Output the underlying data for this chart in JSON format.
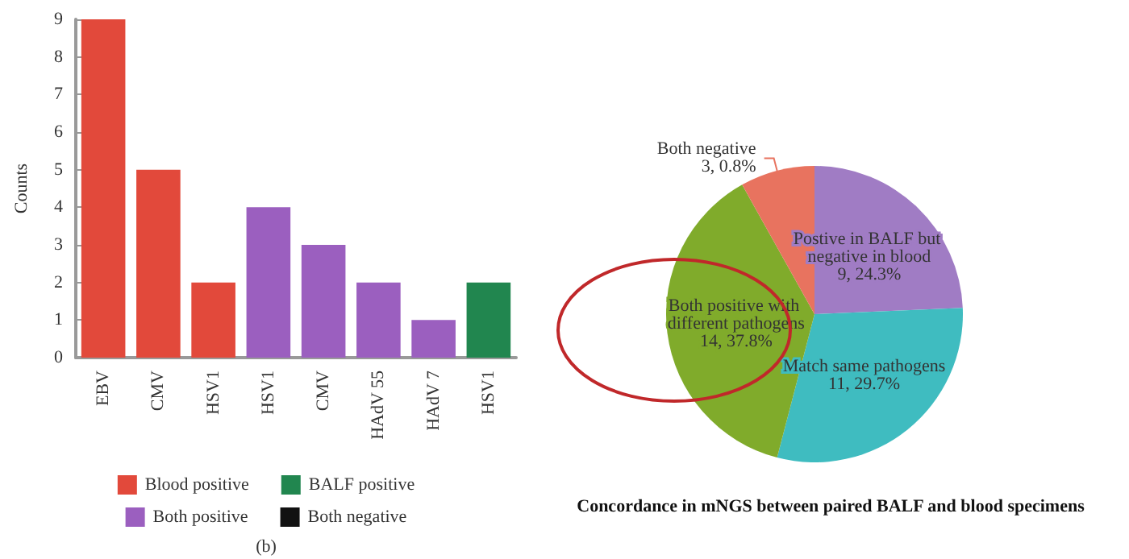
{
  "chart_data": [
    {
      "type": "bar",
      "ylabel": "Counts",
      "categories": [
        "EBV",
        "CMV",
        "HSV1",
        "HSV1",
        "CMV",
        "HAdV 55",
        "HAdV 7",
        "HSV1"
      ],
      "series": [
        {
          "name": "Blood positive",
          "color": "#e2493b",
          "values": [
            9,
            5,
            2,
            null,
            null,
            null,
            null,
            null
          ]
        },
        {
          "name": "Both positive",
          "color": "#9b5fbf",
          "values": [
            null,
            null,
            null,
            4,
            3,
            2,
            1,
            null
          ]
        },
        {
          "name": "BALF positive",
          "color": "#21864f",
          "values": [
            null,
            null,
            null,
            null,
            null,
            null,
            null,
            2
          ]
        },
        {
          "name": "Both negative",
          "color": "#111111",
          "values": [
            null,
            null,
            null,
            null,
            null,
            null,
            null,
            null
          ]
        }
      ],
      "stacked": true,
      "ylim": [
        0,
        9
      ],
      "yticks": [
        0,
        1,
        2,
        3,
        4,
        5,
        6,
        7,
        8,
        9
      ],
      "grid": false,
      "legend": "bottom",
      "annotations": [
        "(b)"
      ]
    },
    {
      "type": "pie",
      "title": "Concordance in mNGS between paired BALF and blood specimens",
      "categories": [
        "Postive in BALF but negative in blood",
        "Match same pathogens",
        "Both positive with different pathogens",
        "Both negative"
      ],
      "values": [
        9,
        11,
        14,
        3
      ],
      "value_labels": [
        "9, 24.3%",
        "11, 29.7%",
        "14, 37.8%",
        "3, 0.8%"
      ],
      "colors": [
        "#a07cc4",
        "#3fbcc0",
        "#80ab2b",
        "#e8735f"
      ],
      "legend": false
    }
  ]
}
